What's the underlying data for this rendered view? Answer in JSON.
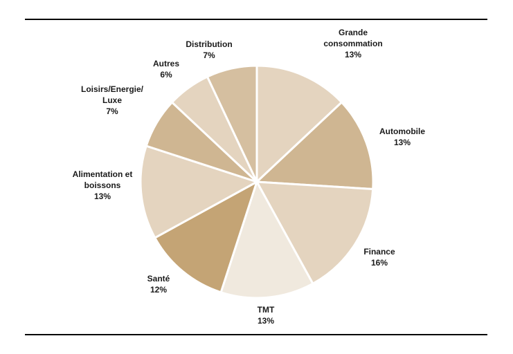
{
  "chart_data": {
    "type": "pie",
    "title": "",
    "colors": {
      "light": "#e4d4bf",
      "medium": "#cfb692",
      "dark": "#c4a475",
      "palest": "#f0e9de",
      "separator": "#ffffff",
      "rule": "#000000",
      "text": "#1a1a1a"
    },
    "slices": [
      {
        "label": [
          "Grande",
          "consommation"
        ],
        "value": 13,
        "value_label": "13%",
        "color": "#e4d4bf"
      },
      {
        "label": [
          "Automobile"
        ],
        "value": 13,
        "value_label": "13%",
        "color": "#cfb692"
      },
      {
        "label": [
          "Finance"
        ],
        "value": 16,
        "value_label": "16%",
        "color": "#e4d4bf"
      },
      {
        "label": [
          "TMT"
        ],
        "value": 13,
        "value_label": "13%",
        "color": "#f0e9de"
      },
      {
        "label": [
          "Santé"
        ],
        "value": 12,
        "value_label": "12%",
        "color": "#c4a475"
      },
      {
        "label": [
          "Alimentation et",
          "boissons"
        ],
        "value": 13,
        "value_label": "13%",
        "color": "#e4d4bf"
      },
      {
        "label": [
          "Loisirs/Energie/",
          "Luxe"
        ],
        "value": 7,
        "value_label": "7%",
        "color": "#cfb692"
      },
      {
        "label": [
          "Autres"
        ],
        "value": 6,
        "value_label": "6%",
        "color": "#e4d4bf"
      },
      {
        "label": [
          "Distribution"
        ],
        "value": 7,
        "value_label": "7%",
        "color": "#d5bfa0"
      }
    ]
  }
}
